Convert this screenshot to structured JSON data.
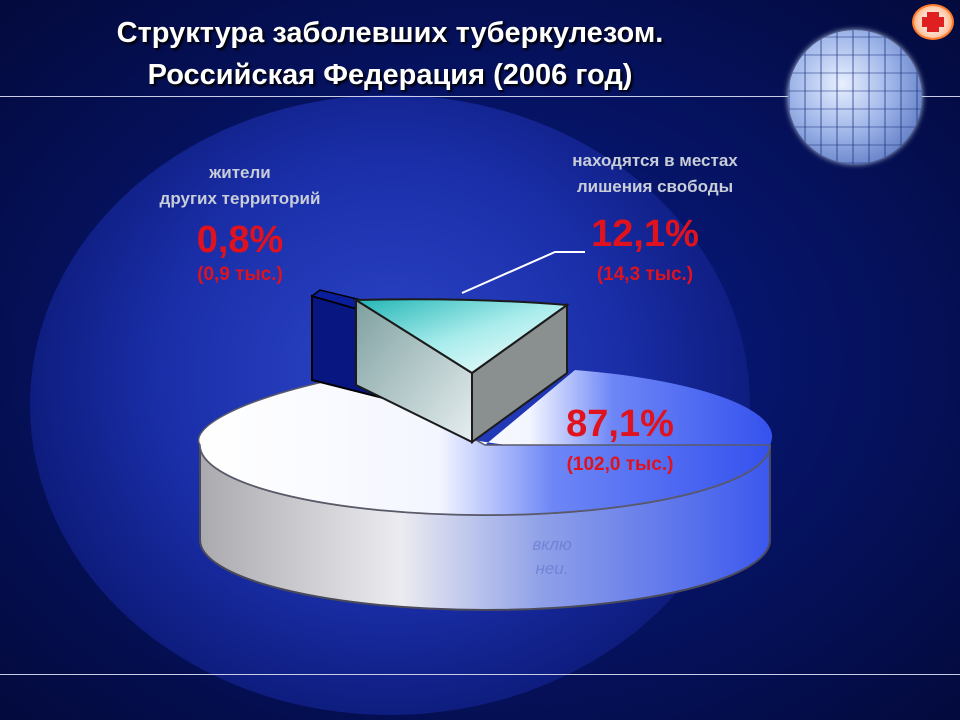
{
  "title": {
    "line1": "Структура заболевших туберкулезом.",
    "line2": "Российская Федерация (2006 год)"
  },
  "labels": {
    "other_territories": {
      "line1": "жители",
      "line2": "других территорий",
      "percent": "0,8%",
      "count": "(0,9 тыс.)"
    },
    "prisons": {
      "line1": "находятся в местах",
      "line2": "лишения свободы",
      "percent": "12,1%",
      "count": "(14,3 тыс.)"
    },
    "main": {
      "percent": "87,1%",
      "count": "(102,0 тыс.)"
    },
    "faded": {
      "line1": "вклю",
      "line2": "неи."
    }
  },
  "colors": {
    "main_slice_white": "#ffffff",
    "main_slice_blue": "#3d5cf5",
    "prison_slice": "#39c9c9",
    "other_slice": "#071680",
    "label_red": "#e0121e"
  },
  "chart_data": {
    "type": "pie",
    "title": "Структура заболевших туберкулезом. Российская Федерация (2006 год)",
    "slices": [
      {
        "label": "жители других территорий",
        "value": 0.8,
        "count_thousand": 0.9
      },
      {
        "label": "находятся в местах лишения свободы",
        "value": 12.1,
        "count_thousand": 14.3
      },
      {
        "label": "",
        "value": 87.1,
        "count_thousand": 102.0
      }
    ],
    "unit": "%",
    "style": "3d-exploded"
  }
}
